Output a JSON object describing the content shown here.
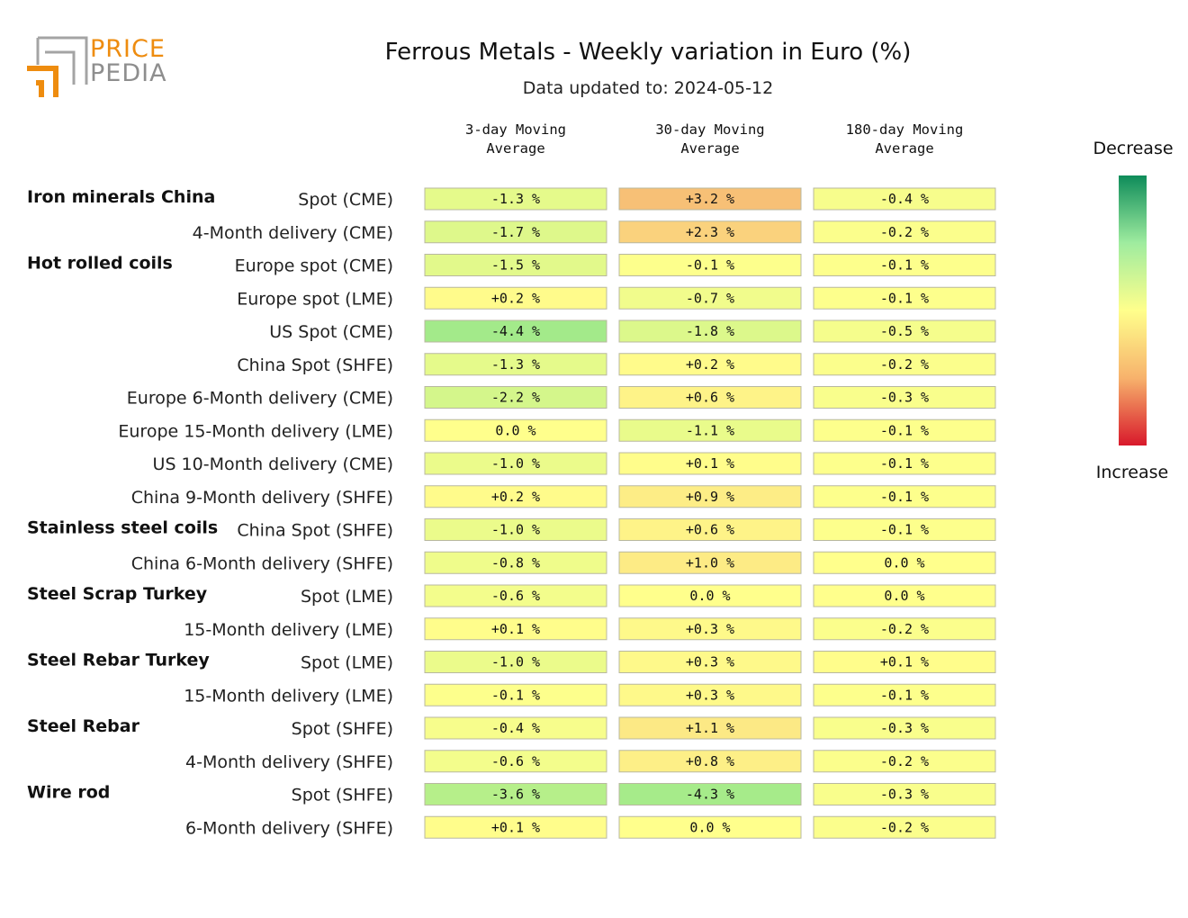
{
  "logo": {
    "line1": "PRICE",
    "line2": "PEDIA"
  },
  "title": "Ferrous Metals - Weekly variation in Euro (%)",
  "subtitle": "Data updated to: 2024-05-12",
  "columns": [
    [
      "3-day Moving",
      "Average"
    ],
    [
      "30-day Moving",
      "Average"
    ],
    [
      "180-day Moving",
      "Average"
    ]
  ],
  "legend": {
    "top": "Decrease",
    "bottom": "Increase",
    "colors": [
      "#0e8c5a",
      "#9fec9f",
      "#ffff8c",
      "#f7b26c",
      "#d8192b"
    ]
  },
  "chart_data": {
    "type": "heatmap",
    "title": "Ferrous Metals - Weekly variation in Euro (%)",
    "columns": [
      "3-day Moving Average",
      "30-day Moving Average",
      "180-day Moving Average"
    ],
    "rows": [
      {
        "group": "Iron minerals China",
        "label": "Spot (CME)",
        "values": [
          "-1.3 %",
          "+3.2 %",
          "-0.4 %"
        ],
        "nums": [
          -1.3,
          3.2,
          -0.4
        ]
      },
      {
        "group": "",
        "label": "4-Month delivery (CME)",
        "values": [
          "-1.7 %",
          "+2.3 %",
          "-0.2 %"
        ],
        "nums": [
          -1.7,
          2.3,
          -0.2
        ]
      },
      {
        "group": "Hot rolled coils",
        "label": "Europe spot (CME)",
        "values": [
          "-1.5 %",
          "-0.1 %",
          "-0.1 %"
        ],
        "nums": [
          -1.5,
          -0.1,
          -0.1
        ]
      },
      {
        "group": "",
        "label": "Europe spot (LME)",
        "values": [
          "+0.2 %",
          "-0.7 %",
          "-0.1 %"
        ],
        "nums": [
          0.2,
          -0.7,
          -0.1
        ]
      },
      {
        "group": "",
        "label": "US Spot (CME)",
        "values": [
          "-4.4 %",
          "-1.8 %",
          "-0.5 %"
        ],
        "nums": [
          -4.4,
          -1.8,
          -0.5
        ]
      },
      {
        "group": "",
        "label": "China Spot (SHFE)",
        "values": [
          "-1.3 %",
          "+0.2 %",
          "-0.2 %"
        ],
        "nums": [
          -1.3,
          0.2,
          -0.2
        ]
      },
      {
        "group": "",
        "label": "Europe 6-Month delivery (CME)",
        "values": [
          "-2.2 %",
          "+0.6 %",
          "-0.3 %"
        ],
        "nums": [
          -2.2,
          0.6,
          -0.3
        ]
      },
      {
        "group": "",
        "label": "Europe 15-Month delivery (LME)",
        "values": [
          "0.0 %",
          "-1.1 %",
          "-0.1 %"
        ],
        "nums": [
          0.0,
          -1.1,
          -0.1
        ]
      },
      {
        "group": "",
        "label": "US 10-Month delivery (CME)",
        "values": [
          "-1.0 %",
          "+0.1 %",
          "-0.1 %"
        ],
        "nums": [
          -1.0,
          0.1,
          -0.1
        ]
      },
      {
        "group": "",
        "label": "China 9-Month delivery (SHFE)",
        "values": [
          "+0.2 %",
          "+0.9 %",
          "-0.1 %"
        ],
        "nums": [
          0.2,
          0.9,
          -0.1
        ]
      },
      {
        "group": "Stainless steel coils",
        "label": "China Spot (SHFE)",
        "values": [
          "-1.0 %",
          "+0.6 %",
          "-0.1 %"
        ],
        "nums": [
          -1.0,
          0.6,
          -0.1
        ]
      },
      {
        "group": "",
        "label": "China 6-Month delivery (SHFE)",
        "values": [
          "-0.8 %",
          "+1.0 %",
          "0.0 %"
        ],
        "nums": [
          -0.8,
          1.0,
          0.0
        ]
      },
      {
        "group": "Steel Scrap Turkey",
        "label": "Spot (LME)",
        "values": [
          "-0.6 %",
          "0.0 %",
          "0.0 %"
        ],
        "nums": [
          -0.6,
          0.0,
          0.0
        ]
      },
      {
        "group": "",
        "label": "15-Month delivery (LME)",
        "values": [
          "+0.1 %",
          "+0.3 %",
          "-0.2 %"
        ],
        "nums": [
          0.1,
          0.3,
          -0.2
        ]
      },
      {
        "group": "Steel Rebar Turkey",
        "label": "Spot (LME)",
        "values": [
          "-1.0 %",
          "+0.3 %",
          "+0.1 %"
        ],
        "nums": [
          -1.0,
          0.3,
          0.1
        ]
      },
      {
        "group": "",
        "label": "15-Month delivery (LME)",
        "values": [
          "-0.1 %",
          "+0.3 %",
          "-0.1 %"
        ],
        "nums": [
          -0.1,
          0.3,
          -0.1
        ]
      },
      {
        "group": "Steel Rebar",
        "label": "Spot (SHFE)",
        "values": [
          "-0.4 %",
          "+1.1 %",
          "-0.3 %"
        ],
        "nums": [
          -0.4,
          1.1,
          -0.3
        ]
      },
      {
        "group": "",
        "label": "4-Month delivery (SHFE)",
        "values": [
          "-0.6 %",
          "+0.8 %",
          "-0.2 %"
        ],
        "nums": [
          -0.6,
          0.8,
          -0.2
        ]
      },
      {
        "group": "Wire rod",
        "label": "Spot (SHFE)",
        "values": [
          "-3.6 %",
          "-4.3 %",
          "-0.3 %"
        ],
        "nums": [
          -3.6,
          -4.3,
          -0.3
        ]
      },
      {
        "group": "",
        "label": "6-Month delivery (SHFE)",
        "values": [
          "+0.1 %",
          "0.0 %",
          "-0.2 %"
        ],
        "nums": [
          0.1,
          0.0,
          -0.2
        ]
      }
    ]
  }
}
